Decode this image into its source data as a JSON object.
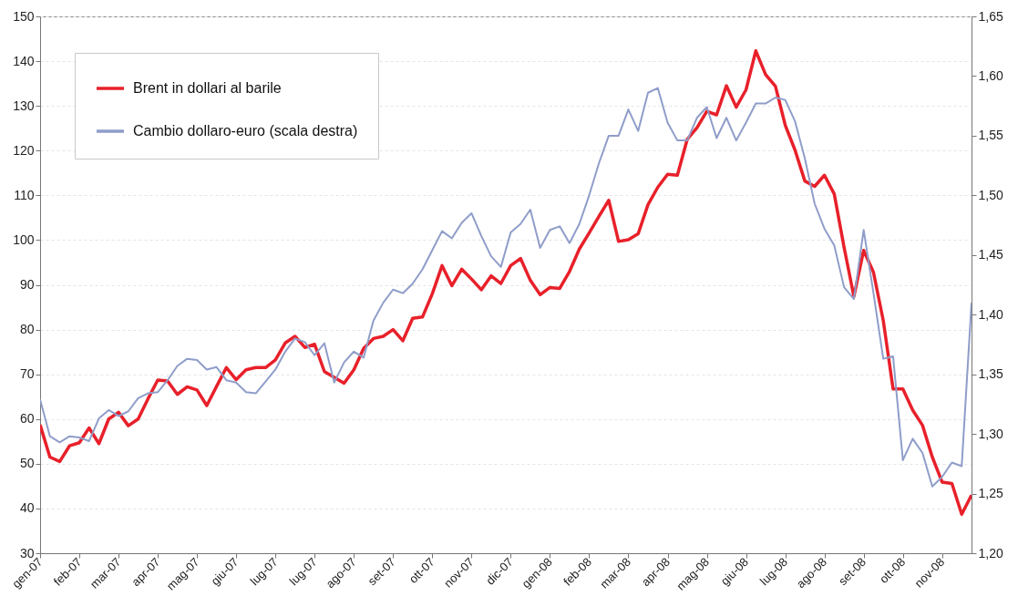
{
  "chart_data": {
    "type": "line",
    "grid": "y",
    "legend": "top left",
    "categories": [
      "gen-07",
      null,
      null,
      null,
      "feb-07",
      null,
      null,
      null,
      "mar-07",
      null,
      null,
      null,
      "apr-07",
      null,
      null,
      null,
      "mag-07",
      null,
      null,
      null,
      "giu-07",
      null,
      null,
      null,
      "lug-07",
      null,
      null,
      null,
      "lug-07",
      null,
      null,
      null,
      "ago-07",
      null,
      null,
      null,
      "set-07",
      null,
      null,
      null,
      "ott-07",
      null,
      null,
      null,
      "nov-07",
      null,
      null,
      null,
      "dic-07",
      null,
      null,
      null,
      "gen-08",
      null,
      null,
      null,
      "feb-08",
      null,
      null,
      null,
      "mar-08",
      null,
      null,
      null,
      "apr-08",
      null,
      null,
      null,
      "mag-08",
      null,
      null,
      null,
      "giu-08",
      null,
      null,
      null,
      "lug-08",
      null,
      null,
      null,
      "ago-08",
      null,
      null,
      null,
      "set-08",
      null,
      null,
      null,
      "ott-08",
      null,
      null,
      null,
      "nov-08",
      null,
      null,
      null
    ],
    "ylim": [
      30,
      150
    ],
    "yticks": [
      30,
      40,
      50,
      60,
      70,
      80,
      90,
      100,
      110,
      120,
      130,
      140,
      150
    ],
    "y2lim": [
      1.2,
      1.65
    ],
    "y2ticks": [
      {
        "value": 1.2,
        "label": "1,20"
      },
      {
        "value": 1.25,
        "label": "1,25"
      },
      {
        "value": 1.3,
        "label": "1,30"
      },
      {
        "value": 1.35,
        "label": "1,35"
      },
      {
        "value": 1.4,
        "label": "1,40"
      },
      {
        "value": 1.45,
        "label": "1,45"
      },
      {
        "value": 1.5,
        "label": "1,50"
      },
      {
        "value": 1.55,
        "label": "1,55"
      },
      {
        "value": 1.6,
        "label": "1,60"
      },
      {
        "value": 1.65,
        "label": "1,65"
      }
    ],
    "series": [
      {
        "name": "Brent in dollari al barile",
        "color": "#e8202a",
        "values": [
          58.7,
          51.5,
          50.5,
          54,
          54.7,
          58,
          54.5,
          60,
          61.5,
          58.5,
          60,
          64.5,
          68.7,
          68.5,
          65.5,
          67.2,
          66.5,
          63,
          67.3,
          71.5,
          68.8,
          71,
          71.5,
          71.5,
          73.2,
          77,
          78.5,
          76,
          76.7,
          70.6,
          69.3,
          68,
          71,
          75.8,
          78,
          78.5,
          80,
          77.5,
          82.5,
          82.8,
          88,
          94.3,
          89.8,
          93.5,
          91.3,
          88.9,
          92,
          90.3,
          94.3,
          95.9,
          91,
          87.8,
          89.4,
          89.2,
          93,
          98,
          101.6,
          105.3,
          108.9,
          99.7,
          100.1,
          101.4,
          107.9,
          111.8,
          114.7,
          114.5,
          122.5,
          125.1,
          128.8,
          128,
          134.5,
          129.7,
          133.6,
          142.3,
          137,
          134.4,
          125.7,
          120.1,
          113.2,
          112,
          114.5,
          110.3,
          98.4,
          87.4,
          97.7,
          92.8,
          82,
          66.7,
          66.7,
          62,
          58.6,
          51.5,
          45.9,
          45.6,
          38.7,
          43
        ]
      },
      {
        "name": "Cambio dollaro-euro (scala destra)",
        "color": "#8f9dc9",
        "axis": "y2",
        "values": [
          1.329,
          1.298,
          1.293,
          1.298,
          1.297,
          1.294,
          1.313,
          1.32,
          1.315,
          1.319,
          1.33,
          1.334,
          1.335,
          1.345,
          1.357,
          1.363,
          1.362,
          1.354,
          1.356,
          1.345,
          1.343,
          1.335,
          1.334,
          1.344,
          1.354,
          1.369,
          1.38,
          1.377,
          1.366,
          1.376,
          1.343,
          1.36,
          1.369,
          1.364,
          1.395,
          1.41,
          1.421,
          1.418,
          1.426,
          1.438,
          1.454,
          1.47,
          1.464,
          1.477,
          1.485,
          1.466,
          1.449,
          1.44,
          1.469,
          1.476,
          1.488,
          1.456,
          1.471,
          1.474,
          1.46,
          1.476,
          1.5,
          1.527,
          1.55,
          1.55,
          1.572,
          1.554,
          1.586,
          1.59,
          1.561,
          1.546,
          1.546,
          1.565,
          1.574,
          1.548,
          1.565,
          1.546,
          1.561,
          1.577,
          1.577,
          1.582,
          1.58,
          1.562,
          1.531,
          1.493,
          1.472,
          1.458,
          1.423,
          1.413,
          1.471,
          1.418,
          1.363,
          1.365,
          1.278,
          1.296,
          1.284,
          1.256,
          1.264,
          1.276,
          1.273,
          1.41
        ]
      }
    ]
  }
}
